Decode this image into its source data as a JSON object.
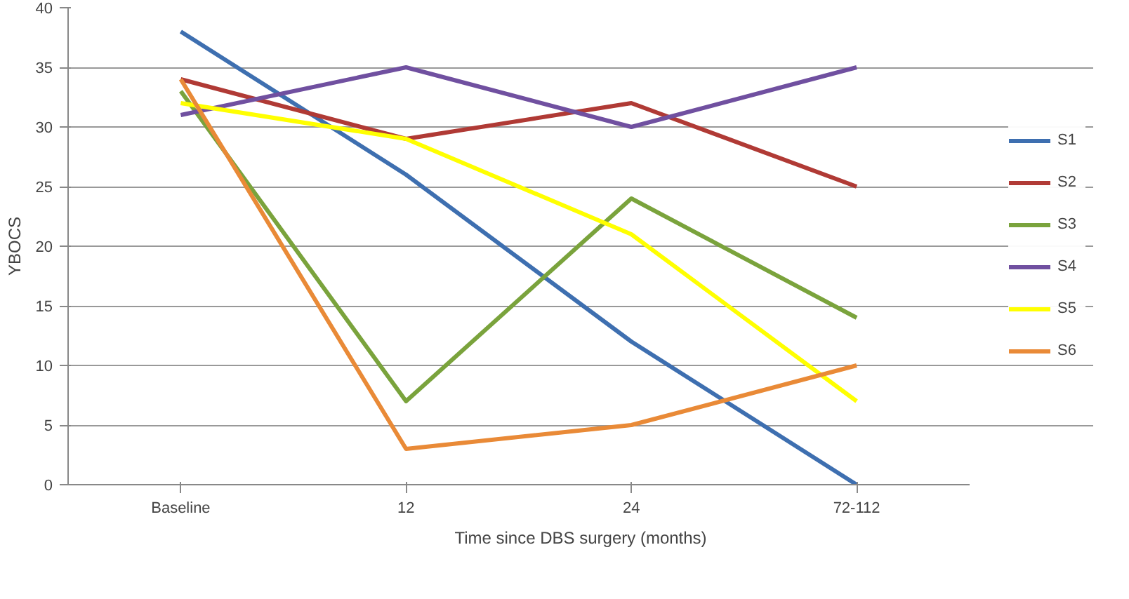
{
  "chart_data": {
    "type": "line",
    "xlabel": "Time since DBS surgery (months)",
    "ylabel": "YBOCS",
    "categories": [
      "Baseline",
      "12",
      "24",
      "72-112"
    ],
    "ylim": [
      0,
      40
    ],
    "yticks": [
      0,
      5,
      10,
      15,
      20,
      25,
      30,
      35,
      40
    ],
    "grid": "y",
    "legend": "right",
    "marker": "none",
    "line_style": "solid",
    "series": [
      {
        "name": "S1",
        "color": "#3e6fb0",
        "values": [
          38,
          26,
          12,
          0
        ]
      },
      {
        "name": "S2",
        "color": "#b03a35",
        "values": [
          34,
          29,
          32,
          25
        ]
      },
      {
        "name": "S3",
        "color": "#7aa33c",
        "values": [
          33,
          7,
          24,
          14
        ]
      },
      {
        "name": "S4",
        "color": "#7050a0",
        "values": [
          31,
          35,
          30,
          35
        ]
      },
      {
        "name": "S5",
        "color": "#ffff00",
        "values": [
          32,
          29,
          21,
          7
        ]
      },
      {
        "name": "S6",
        "color": "#e98a37",
        "values": [
          34,
          3,
          5,
          10
        ]
      }
    ]
  }
}
